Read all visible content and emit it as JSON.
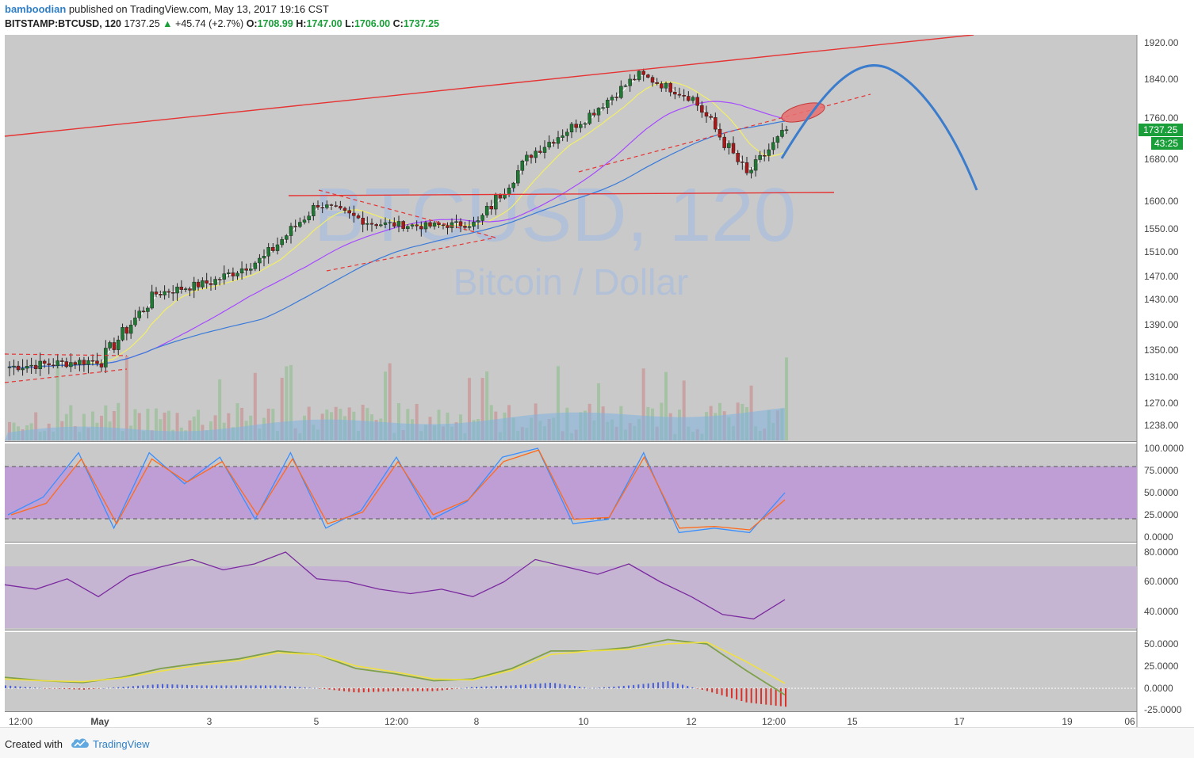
{
  "header": {
    "author": "bamboodian",
    "published_text": "published on TradingView.com, May 13, 2017 19:16 CST",
    "symbol": "BITSTAMP:BTCUSD, 120",
    "last": "1737.25",
    "change": "+45.74 (+2.7%)",
    "o_label": "O:",
    "o_value": "1708.99",
    "h_label": "H:",
    "h_value": "1747.00",
    "l_label": "L:",
    "l_value": "1706.00",
    "c_label": "C:",
    "c_value": "1737.25"
  },
  "watermark": {
    "symbol": "BTCUSD, 120",
    "description": "Bitcoin / Dollar"
  },
  "price_badge": "1737.25",
  "countdown_badge": "43:25",
  "footer": {
    "created_with": "Created with",
    "brand": "TradingView"
  },
  "colors": {
    "background": "#c9c9c9",
    "up": "#1e7a32",
    "down": "#a81818",
    "trend_red": "#e63333",
    "projection": "#3b7dcc",
    "ma_fast": "#ffffff",
    "ma_yellow": "#f2ee66",
    "ma_purple": "#a64bff",
    "ma_blue": "#3a7ad9",
    "stoch_k": "#3a8fff",
    "stoch_d": "#ff6a1a",
    "rsi": "#7a2a9e",
    "macd_line": "#7fa04a",
    "signal_line": "#f0e040",
    "badge": "#1a9e3a"
  },
  "chart_data": [
    {
      "type": "candlestick",
      "title": "BITSTAMP:BTCUSD, 120",
      "price_axis_ticks": [
        1920,
        1840,
        1760,
        1680,
        1600,
        1550,
        1510,
        1470,
        1430,
        1390,
        1350,
        1310,
        1270,
        1238
      ],
      "time_axis_ticks": [
        "12:00",
        "May",
        "3",
        "5",
        "12:00",
        "8",
        "10",
        "12",
        "12:00",
        "15",
        "17",
        "19",
        "06"
      ],
      "last_price": 1737.25,
      "close_path_approx": [
        {
          "time": "Apr 30 12:00",
          "close": 1325
        },
        {
          "time": "May 1",
          "close": 1335
        },
        {
          "time": "May 2",
          "close": 1440
        },
        {
          "time": "May 3",
          "close": 1460
        },
        {
          "time": "May 4",
          "close": 1500
        },
        {
          "time": "May 5",
          "close": 1595
        },
        {
          "time": "May 6",
          "close": 1560
        },
        {
          "time": "May 7",
          "close": 1555
        },
        {
          "time": "May 8",
          "close": 1560
        },
        {
          "time": "May 9",
          "close": 1690
        },
        {
          "time": "May 10",
          "close": 1760
        },
        {
          "time": "May 11",
          "close": 1850
        },
        {
          "time": "May 12",
          "close": 1800
        },
        {
          "time": "May 12 12:00",
          "close": 1650
        },
        {
          "time": "May 13",
          "close": 1737.25
        }
      ],
      "volume_present": true
    },
    {
      "type": "line",
      "indicator": "Stochastic",
      "axis_ticks": [
        100.0,
        75.0,
        50.0,
        25.0,
        0.0
      ],
      "overbought": 80,
      "oversold": 20,
      "series": [
        {
          "values": [
            25,
            45,
            95,
            10,
            95,
            60,
            90,
            20,
            95,
            10,
            30,
            90,
            20,
            40,
            90,
            100,
            15,
            20,
            95,
            5,
            10,
            5,
            50
          ]
        },
        {
          "values": [
            25,
            38,
            88,
            15,
            88,
            62,
            85,
            25,
            88,
            15,
            28,
            85,
            25,
            42,
            85,
            98,
            20,
            22,
            90,
            10,
            12,
            8,
            42
          ]
        }
      ]
    },
    {
      "type": "line",
      "indicator": "RSI",
      "axis_ticks": [
        80.0,
        60.0,
        40.0
      ],
      "band": [
        30,
        70
      ],
      "series": [
        {
          "values": [
            58,
            55,
            62,
            50,
            64,
            70,
            75,
            68,
            72,
            80,
            62,
            60,
            55,
            52,
            55,
            50,
            60,
            75,
            70,
            65,
            72,
            60,
            50,
            38,
            35,
            48
          ]
        }
      ]
    },
    {
      "type": "line",
      "indicator": "MACD",
      "axis_ticks": [
        50.0,
        25.0,
        0.0,
        -25.0
      ],
      "series": [
        {
          "values": [
            12,
            8,
            6,
            12,
            22,
            28,
            33,
            42,
            38,
            22,
            16,
            8,
            10,
            22,
            42,
            42,
            46,
            55,
            50,
            20,
            -8
          ]
        },
        {
          "values": [
            10,
            8,
            7,
            11,
            19,
            26,
            31,
            40,
            38,
            25,
            18,
            10,
            9,
            20,
            38,
            42,
            44,
            50,
            52,
            30,
            5
          ]
        }
      ]
    }
  ]
}
